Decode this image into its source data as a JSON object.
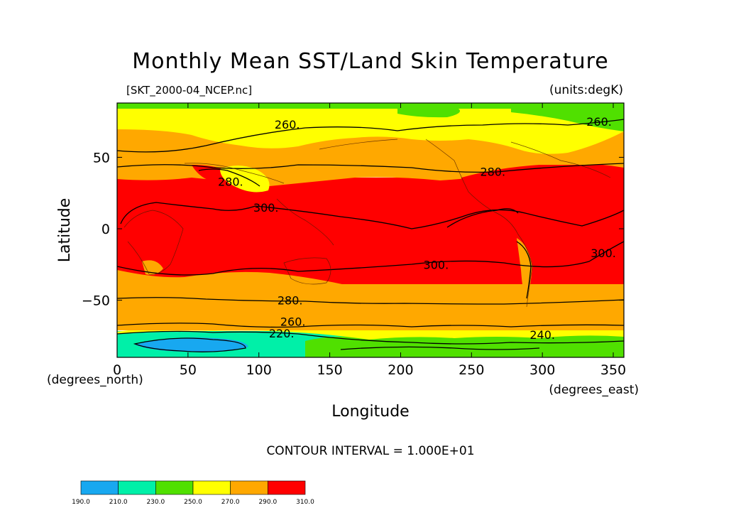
{
  "chart_data": {
    "type": "heatmap",
    "title": "Monthly Mean SST/Land Skin Temperature",
    "subtitle_left": "[SKT_2000-04_NCEP.nc]",
    "subtitle_right": "(units:degK)",
    "xlabel": "Longitude",
    "ylabel": "Latitude",
    "x_unit_label": "(degrees_east)",
    "y_unit_label": "(degrees_north)",
    "xlim": [
      0,
      357.5
    ],
    "ylim": [
      -90,
      88
    ],
    "xticks": [
      0,
      50,
      100,
      150,
      200,
      250,
      300,
      350
    ],
    "yticks": [
      -50,
      0,
      50
    ],
    "contour_interval_text": "CONTOUR INTERVAL = 1.000E+01",
    "contour_labels": [
      {
        "text": "260.",
        "lon": 120,
        "lat": 73
      },
      {
        "text": "260.",
        "lon": 340,
        "lat": 75
      },
      {
        "text": "280.",
        "lon": 265,
        "lat": 40
      },
      {
        "text": "280.",
        "lon": 80,
        "lat": 33
      },
      {
        "text": "300.",
        "lon": 105,
        "lat": 15
      },
      {
        "text": "300.",
        "lon": 225,
        "lat": -25
      },
      {
        "text": "300.",
        "lon": 343,
        "lat": -17
      },
      {
        "text": "280.",
        "lon": 122,
        "lat": -50
      },
      {
        "text": "260.",
        "lon": 124,
        "lat": -65
      },
      {
        "text": "220.",
        "lon": 116,
        "lat": -73
      },
      {
        "text": "240.",
        "lon": 300,
        "lat": -74
      }
    ],
    "colorbar": {
      "levels": [
        "190.0",
        "210.0",
        "230.0",
        "250.0",
        "270.0",
        "290.0",
        "310.0"
      ],
      "colors": [
        "#18a8f0",
        "#00f0a8",
        "#50e000",
        "#ffff00",
        "#ffa800",
        "#ff0000"
      ]
    },
    "colors": {
      "ocean_cold": "#00f0a8",
      "very_cold": "#18a8f0",
      "cold": "#50e000",
      "cool": "#ffff00",
      "mild": "#ffa800",
      "warm": "#ff0000"
    }
  }
}
